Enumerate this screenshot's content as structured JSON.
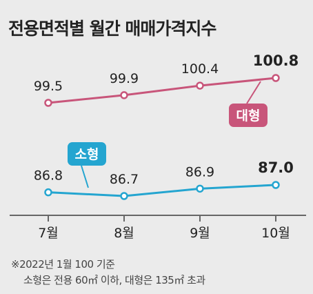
{
  "title": "전용면적별 월간 매매가격지수",
  "notes": {
    "line1": "※2022년 1월 100 기준",
    "line2": "소형은 전용 60㎡ 이하, 대형은 135㎡ 초과"
  },
  "colors": {
    "large": "#c8557a",
    "small": "#24a5d0",
    "axis": "#666666",
    "text": "#222222"
  },
  "chart_data": {
    "type": "line",
    "categories": [
      "7월",
      "8월",
      "9월",
      "10월"
    ],
    "series": [
      {
        "name": "대형",
        "values": [
          99.5,
          99.9,
          100.4,
          100.8
        ],
        "labels": [
          "99.5",
          "99.9",
          "100.4",
          "100.8"
        ]
      },
      {
        "name": "소형",
        "values": [
          86.8,
          86.7,
          86.9,
          87.0
        ],
        "labels": [
          "86.8",
          "86.7",
          "86.9",
          "87.0"
        ]
      }
    ]
  }
}
